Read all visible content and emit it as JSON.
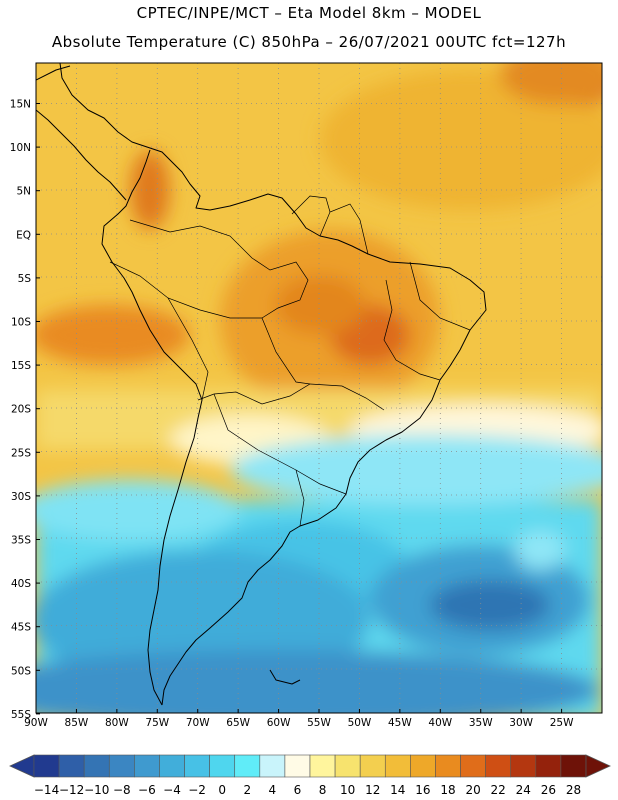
{
  "header": {
    "line1": "CPTEC/INPE/MCT –  Eta Model 8km – MODEL",
    "line2": "Absolute Temperature (C) 850hPa – 26/07/2021 00UTC fct=127h"
  },
  "map": {
    "lat_labels": [
      "15N",
      "10N",
      "5N",
      "EQ",
      "5S",
      "10S",
      "15S",
      "20S",
      "25S",
      "30S",
      "35S",
      "40S",
      "45S",
      "50S",
      "55S"
    ],
    "lon_labels": [
      "90W",
      "85W",
      "80W",
      "75W",
      "70W",
      "65W",
      "60W",
      "55W",
      "50W",
      "45W",
      "40W",
      "35W",
      "30W",
      "25W"
    ],
    "grid": "dotted"
  },
  "colorbar": {
    "labels": [
      "−14",
      "−12",
      "−10",
      "−8",
      "−6",
      "−4",
      "−2",
      "0",
      "2",
      "4",
      "6",
      "8",
      "10",
      "12",
      "14",
      "16",
      "18",
      "20",
      "22",
      "24",
      "26",
      "28"
    ],
    "colors": [
      "#213a8f",
      "#2f5fa8",
      "#3474b4",
      "#3b86c2",
      "#3f9acf",
      "#41aeda",
      "#47c1e6",
      "#4fd6ee",
      "#60ecf8",
      "#c9f4fb",
      "#fffbe6",
      "#fff59d",
      "#f7e36e",
      "#f3cf4f",
      "#f2bd39",
      "#eea829",
      "#e98b1f",
      "#e06d1a",
      "#cf4f14",
      "#b43710",
      "#94220c",
      "#6e1208"
    ],
    "arrow_low_color": "#213a8f",
    "arrow_high_color": "#6e1208"
  }
}
